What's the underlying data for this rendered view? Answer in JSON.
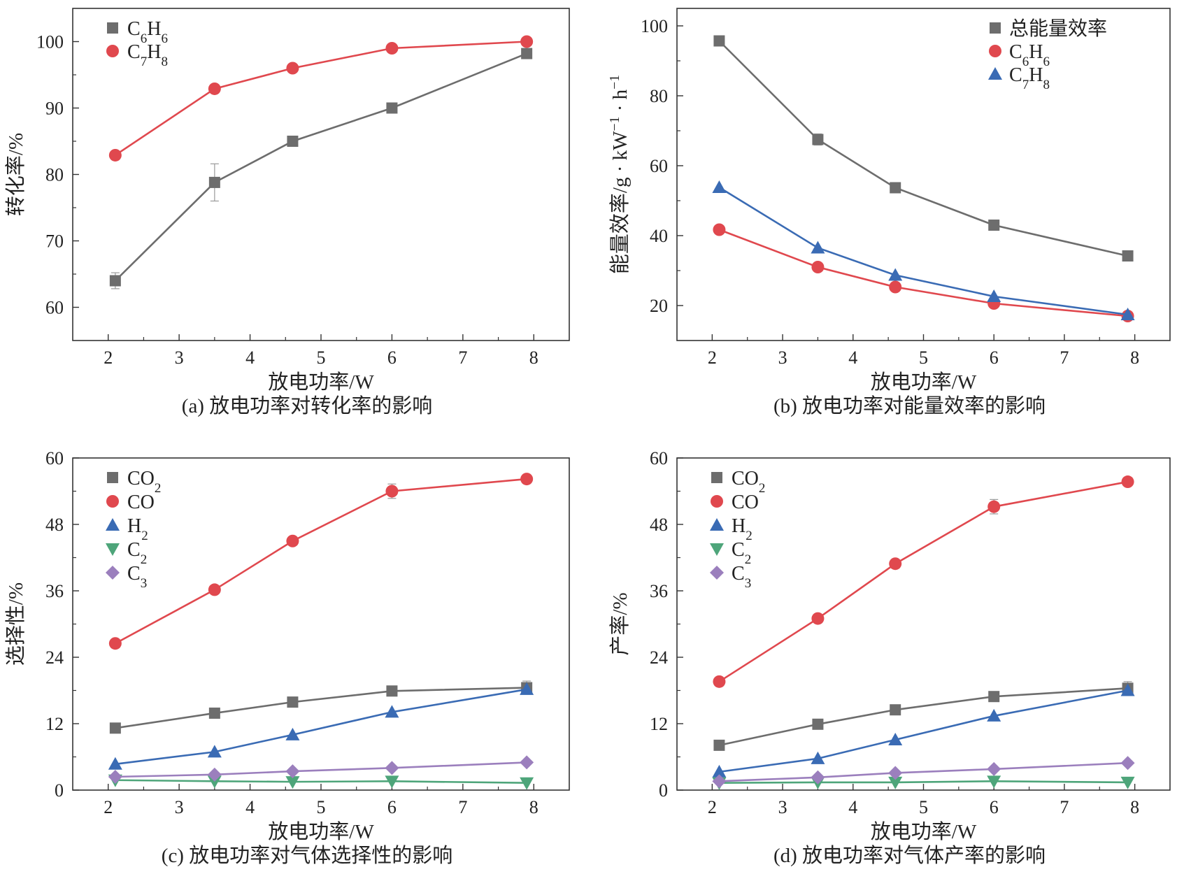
{
  "colors": {
    "gray": "#6d6d6d",
    "red": "#e0484e",
    "blue": "#3a6bb4",
    "green": "#4ea57a",
    "purple": "#9b7fbd",
    "axis": "#333333"
  },
  "chart_data": [
    {
      "type": "line",
      "caption": "(a) 放电功率对转化率的影响",
      "xlabel": "放电功率/W",
      "ylabel": "转化率/%",
      "xlim": [
        1.5,
        8.5
      ],
      "ylim": [
        55,
        105
      ],
      "xticks": [
        2,
        3,
        4,
        5,
        6,
        7,
        8
      ],
      "yticks": [
        60,
        70,
        80,
        90,
        100
      ],
      "x": [
        2.1,
        3.5,
        4.6,
        6.0,
        7.9
      ],
      "legend_position": "top-left",
      "series": [
        {
          "name": "C6H6",
          "label_parts": [
            [
              "C",
              "n"
            ],
            [
              "6",
              "sub"
            ],
            [
              "H",
              "n"
            ],
            [
              "6",
              "sub"
            ]
          ],
          "marker": "square",
          "color_key": "gray",
          "values": [
            64.0,
            78.8,
            85.0,
            90.0,
            98.2
          ],
          "errors": [
            1.2,
            2.8,
            0,
            0,
            0
          ]
        },
        {
          "name": "C7H8",
          "label_parts": [
            [
              "C",
              "n"
            ],
            [
              "7",
              "sub"
            ],
            [
              "H",
              "n"
            ],
            [
              "8",
              "sub"
            ]
          ],
          "marker": "circle",
          "color_key": "red",
          "values": [
            82.9,
            92.9,
            96.0,
            99.0,
            100.0
          ],
          "errors": [
            0.5,
            0,
            0,
            0,
            0
          ]
        }
      ]
    },
    {
      "type": "line",
      "caption": "(b) 放电功率对能量效率的影响",
      "xlabel": "放电功率/W",
      "ylabel_parts": [
        [
          "能量效率/g · kW",
          "n"
        ],
        [
          "−1",
          "sup"
        ],
        [
          " · h",
          "n"
        ],
        [
          "−1",
          "sup"
        ]
      ],
      "ylabel": "能量效率/g · kW−1 · h−1",
      "xlim": [
        1.5,
        8.5
      ],
      "ylim": [
        10,
        105
      ],
      "xticks": [
        2,
        3,
        4,
        5,
        6,
        7,
        8
      ],
      "yticks": [
        20,
        40,
        60,
        80,
        100
      ],
      "x": [
        2.1,
        3.5,
        4.6,
        6.0,
        7.9
      ],
      "legend_position": "top-right",
      "series": [
        {
          "name": "总能量效率",
          "label_parts": [
            [
              "总能量效率",
              "n"
            ]
          ],
          "marker": "square",
          "color_key": "gray",
          "values": [
            95.7,
            67.5,
            53.7,
            43.0,
            34.2
          ],
          "errors": [
            0,
            1.6,
            0,
            0,
            0
          ]
        },
        {
          "name": "C6H6",
          "label_parts": [
            [
              "C",
              "n"
            ],
            [
              "6",
              "sub"
            ],
            [
              "H",
              "n"
            ],
            [
              "6",
              "sub"
            ]
          ],
          "marker": "circle",
          "color_key": "red",
          "values": [
            41.7,
            31.0,
            25.3,
            20.6,
            17.0
          ],
          "errors": [
            0,
            0,
            0,
            0,
            0
          ]
        },
        {
          "name": "C7H8",
          "label_parts": [
            [
              "C",
              "n"
            ],
            [
              "7",
              "sub"
            ],
            [
              "H",
              "n"
            ],
            [
              "8",
              "sub"
            ]
          ],
          "marker": "triangle",
          "color_key": "blue",
          "values": [
            53.8,
            36.5,
            28.7,
            22.6,
            17.4
          ],
          "errors": [
            0,
            0,
            0,
            0,
            0
          ]
        }
      ]
    },
    {
      "type": "line",
      "caption": "(c) 放电功率对气体选择性的影响",
      "xlabel": "放电功率/W",
      "ylabel": "选择性/%",
      "xlim": [
        1.5,
        8.5
      ],
      "ylim": [
        0,
        60
      ],
      "xticks": [
        2,
        3,
        4,
        5,
        6,
        7,
        8
      ],
      "yticks": [
        0,
        12,
        24,
        36,
        48,
        60
      ],
      "x": [
        2.1,
        3.5,
        4.6,
        6.0,
        7.9
      ],
      "legend_position": "top-left",
      "series": [
        {
          "name": "CO2",
          "label_parts": [
            [
              "CO",
              "n"
            ],
            [
              "2",
              "sub"
            ]
          ],
          "marker": "square",
          "color_key": "gray",
          "values": [
            11.2,
            13.9,
            15.9,
            17.9,
            18.5
          ],
          "errors": [
            0,
            0,
            0,
            0.8,
            1.2
          ]
        },
        {
          "name": "CO",
          "label_parts": [
            [
              "CO",
              "n"
            ]
          ],
          "marker": "circle",
          "color_key": "red",
          "values": [
            26.5,
            36.2,
            45.0,
            54.0,
            56.2
          ],
          "errors": [
            0,
            0,
            0,
            1.3,
            0
          ]
        },
        {
          "name": "H2",
          "label_parts": [
            [
              "H",
              "n"
            ],
            [
              "2",
              "sub"
            ]
          ],
          "marker": "triangle",
          "color_key": "blue",
          "values": [
            4.7,
            6.9,
            10.0,
            14.1,
            18.2
          ],
          "errors": [
            0,
            0,
            0,
            0,
            0
          ]
        },
        {
          "name": "C2",
          "label_parts": [
            [
              "C",
              "n"
            ],
            [
              "2",
              "sub"
            ]
          ],
          "marker": "triangle-down",
          "color_key": "green",
          "values": [
            1.8,
            1.6,
            1.5,
            1.6,
            1.3
          ],
          "errors": [
            0,
            0,
            0,
            0,
            0
          ]
        },
        {
          "name": "C3",
          "label_parts": [
            [
              "C",
              "n"
            ],
            [
              "3",
              "sub"
            ]
          ],
          "marker": "diamond",
          "color_key": "purple",
          "values": [
            2.4,
            2.8,
            3.4,
            4.0,
            5.0
          ],
          "errors": [
            0,
            0,
            0,
            0,
            0
          ]
        }
      ]
    },
    {
      "type": "line",
      "caption": "(d) 放电功率对气体产率的影响",
      "xlabel": "放电功率/W",
      "ylabel": "产率/%",
      "xlim": [
        1.5,
        8.5
      ],
      "ylim": [
        0,
        60
      ],
      "xticks": [
        2,
        3,
        4,
        5,
        6,
        7,
        8
      ],
      "yticks": [
        0,
        12,
        24,
        36,
        48,
        60
      ],
      "x": [
        2.1,
        3.5,
        4.6,
        6.0,
        7.9
      ],
      "legend_position": "top-left",
      "series": [
        {
          "name": "CO2",
          "label_parts": [
            [
              "CO",
              "n"
            ],
            [
              "2",
              "sub"
            ]
          ],
          "marker": "square",
          "color_key": "gray",
          "values": [
            8.1,
            11.9,
            14.5,
            16.9,
            18.4
          ],
          "errors": [
            0,
            0,
            0,
            0.8,
            1.2
          ]
        },
        {
          "name": "CO",
          "label_parts": [
            [
              "CO",
              "n"
            ]
          ],
          "marker": "circle",
          "color_key": "red",
          "values": [
            19.6,
            31.0,
            40.9,
            51.2,
            55.7
          ],
          "errors": [
            0,
            0,
            0,
            1.3,
            0
          ]
        },
        {
          "name": "H2",
          "label_parts": [
            [
              "H",
              "n"
            ],
            [
              "2",
              "sub"
            ]
          ],
          "marker": "triangle",
          "color_key": "blue",
          "values": [
            3.3,
            5.7,
            9.1,
            13.4,
            18.0
          ],
          "errors": [
            0,
            0,
            0,
            0,
            0
          ]
        },
        {
          "name": "C2",
          "label_parts": [
            [
              "C",
              "n"
            ],
            [
              "2",
              "sub"
            ]
          ],
          "marker": "triangle-down",
          "color_key": "green",
          "values": [
            1.3,
            1.4,
            1.4,
            1.6,
            1.4
          ],
          "errors": [
            0,
            0,
            0,
            0,
            0
          ]
        },
        {
          "name": "C3",
          "label_parts": [
            [
              "C",
              "n"
            ],
            [
              "3",
              "sub"
            ]
          ],
          "marker": "diamond",
          "color_key": "purple",
          "values": [
            1.6,
            2.3,
            3.1,
            3.8,
            4.9
          ],
          "errors": [
            0,
            0,
            0,
            0,
            0
          ]
        }
      ]
    }
  ]
}
